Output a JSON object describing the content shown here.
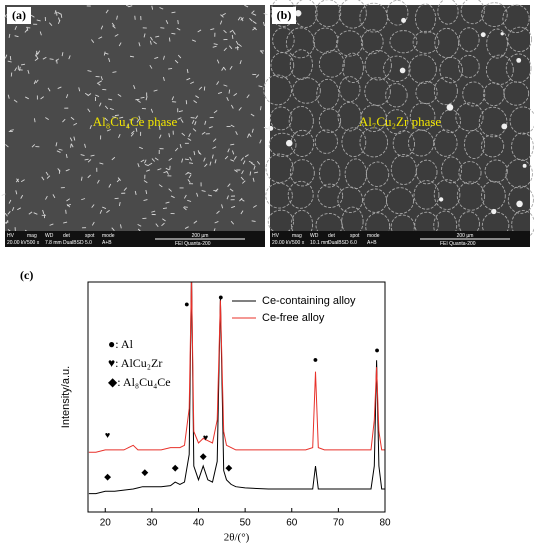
{
  "panels": [
    {
      "label": "(a)",
      "phase_label": "Al₈Cu₄Ce phase",
      "info_headers": [
        "HV",
        "mag",
        "WD",
        "det",
        "spot",
        "mode"
      ],
      "info_values": [
        "20.00 kV",
        "500 x",
        "7.8 mm",
        "DualBSD",
        "5.0",
        "A+B"
      ],
      "scale": "200 µm",
      "instrument": "FEI   Quanta-200"
    },
    {
      "label": "(b)",
      "phase_label": "Al₇Cu₂Zr phase",
      "info_headers": [
        "HV",
        "mag",
        "WD",
        "det",
        "spot",
        "mode"
      ],
      "info_values": [
        "20.00 kV",
        "500 x",
        "10.1 mm",
        "DualBSD",
        "6.0",
        "A+B"
      ],
      "scale": "200 µm",
      "instrument": "FEI   Quanta-200"
    }
  ],
  "chart_data": {
    "type": "line",
    "label": "(c)",
    "x_label": "2θ/(°)",
    "y_label": "Intensity/a.u.",
    "x": [
      16.5,
      18,
      20,
      22,
      24,
      26,
      27,
      28,
      30,
      32,
      34,
      35,
      36,
      37,
      38,
      38.5,
      39,
      40,
      41,
      42,
      43,
      44,
      44.7,
      45.4,
      46,
      47,
      48,
      50,
      55,
      60,
      63,
      64.5,
      65.1,
      65.7,
      67,
      70,
      75,
      77,
      77.7,
      78.2,
      78.7,
      79.3,
      80
    ],
    "series": [
      {
        "name": "Ce-containing alloy",
        "color": "#000000",
        "values": [
          8,
          8,
          9,
          9,
          9.5,
          10,
          10.5,
          11,
          11,
          11,
          11.5,
          13,
          12,
          13,
          25,
          105,
          20,
          14,
          20,
          14,
          13,
          22,
          93,
          18,
          14,
          12,
          11,
          10.5,
          10,
          10,
          10,
          10,
          20,
          10,
          10,
          10,
          10,
          10,
          20,
          66,
          20,
          10,
          10
        ]
      },
      {
        "name": "Ce-free alloy",
        "color": "#e8312a",
        "values": [
          26,
          26,
          27,
          27,
          27,
          29,
          27,
          27,
          27,
          27,
          28,
          28,
          28,
          29,
          45,
          102,
          35,
          30,
          32,
          31,
          30,
          40,
          92,
          35,
          29,
          28,
          27,
          27,
          27,
          27,
          27,
          28,
          61,
          28,
          27,
          27,
          27,
          27,
          40,
          63,
          35,
          27,
          27
        ]
      }
    ],
    "xlim": [
      16.3,
      80
    ],
    "xticks": [
      20,
      30,
      40,
      50,
      60,
      70,
      80
    ],
    "ylim": [
      0,
      100
    ],
    "legend": "upper right",
    "phase_legend": [
      "●: Al",
      "♥: AlCu₂Zr",
      "◆: Al₈Cu₄Ce"
    ],
    "annotations": [
      {
        "text": "●",
        "x": 37.5,
        "y": 90
      },
      {
        "text": "●",
        "x": 44.8,
        "y": 93
      },
      {
        "text": "●",
        "x": 65.1,
        "y": 66
      },
      {
        "text": "●",
        "x": 78.3,
        "y": 70
      },
      {
        "text": "♥",
        "x": 20.5,
        "y": 33
      },
      {
        "text": "♥",
        "x": 41.5,
        "y": 32
      },
      {
        "text": "◆",
        "x": 20.5,
        "y": 15
      },
      {
        "text": "◆",
        "x": 28.5,
        "y": 17
      },
      {
        "text": "◆",
        "x": 35,
        "y": 19
      },
      {
        "text": "◆",
        "x": 41,
        "y": 24
      },
      {
        "text": "◆",
        "x": 46.5,
        "y": 19
      }
    ]
  }
}
